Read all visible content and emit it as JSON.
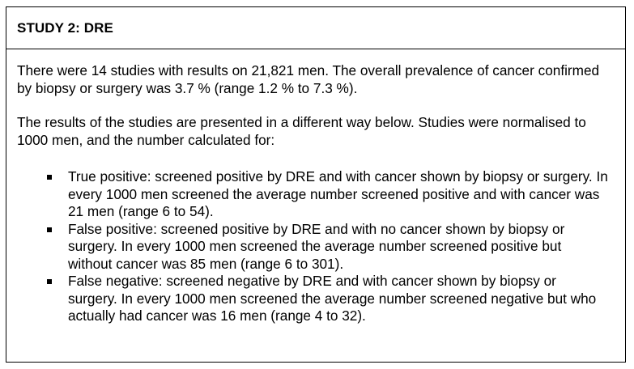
{
  "header": {
    "title": "STUDY 2:  DRE"
  },
  "body": {
    "paragraphs": [
      "There were 14 studies with results on 21,821 men. The overall prevalence of cancer confirmed by biopsy or surgery was 3.7 % (range 1.2 % to 7.3 %).",
      "The results of the studies are presented in a different way below. Studies were normalised to 1000 men, and the number calculated for:"
    ],
    "bullets": [
      "True positive: screened positive by DRE and with cancer shown by biopsy or surgery. In every 1000 men screened the average number screened positive and with cancer was 21 men (range 6 to 54).",
      "False positive: screened positive by DRE and with no cancer shown by biopsy or surgery. In every 1000 men screened the average number screened positive but without cancer was 85 men (range 6 to 301).",
      "False negative: screened negative by DRE and with cancer shown by biopsy or surgery. In every 1000 men screened the average number screened negative but who actually had cancer was 16 men (range 4 to 32)."
    ]
  }
}
